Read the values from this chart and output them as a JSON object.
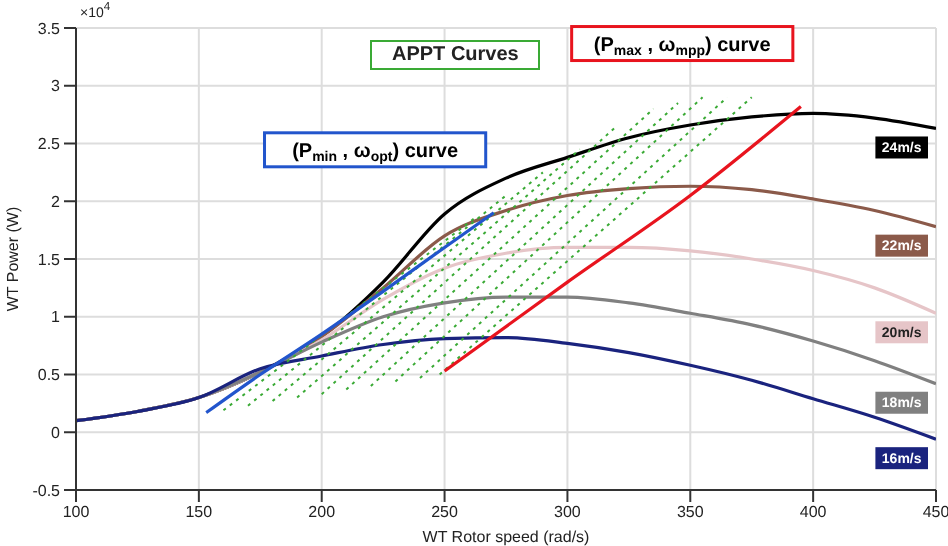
{
  "chart_data": {
    "type": "line",
    "xlabel": "WT Rotor speed (rad/s)",
    "ylabel": "WT Power (W)",
    "xlim": [
      100,
      450
    ],
    "xticks": [
      100,
      150,
      200,
      250,
      300,
      350,
      400,
      450
    ],
    "ylim": [
      -0.5,
      3.5
    ],
    "yticks": [
      -0.5,
      0,
      0.5,
      1,
      1.5,
      2,
      2.5,
      3,
      3.5
    ],
    "grid": true,
    "legend": false,
    "marker": "none",
    "annotations": [
      "×10$^{4}$",
      "APPT Curves"
    ],
    "series": [
      {
        "name": "24m/s",
        "color": "#000000",
        "x": [
          100,
          125,
          150,
          175,
          200,
          225,
          250,
          275,
          300,
          325,
          350,
          375,
          400,
          425,
          450
        ],
        "values": [
          0.1,
          0.18,
          0.3,
          0.52,
          0.83,
          1.3,
          1.89,
          2.2,
          2.38,
          2.55,
          2.66,
          2.73,
          2.76,
          2.72,
          2.63
        ]
      },
      {
        "name": "22m/s",
        "color": "#8b5a4a",
        "x": [
          100,
          125,
          150,
          175,
          200,
          225,
          250,
          275,
          300,
          325,
          350,
          375,
          400,
          425,
          450
        ],
        "values": [
          0.1,
          0.18,
          0.3,
          0.52,
          0.83,
          1.25,
          1.7,
          1.92,
          2.05,
          2.11,
          2.13,
          2.1,
          2.02,
          1.92,
          1.78
        ]
      },
      {
        "name": "20m/s",
        "color": "#e6c5c8",
        "x": [
          100,
          125,
          150,
          175,
          200,
          225,
          250,
          275,
          300,
          325,
          350,
          375,
          400,
          425,
          450
        ],
        "values": [
          0.1,
          0.18,
          0.3,
          0.52,
          0.8,
          1.15,
          1.42,
          1.55,
          1.6,
          1.6,
          1.57,
          1.5,
          1.4,
          1.25,
          1.03
        ]
      },
      {
        "name": "18m/s",
        "color": "#808080",
        "x": [
          100,
          125,
          150,
          175,
          200,
          225,
          250,
          275,
          300,
          325,
          350,
          375,
          400,
          425,
          450
        ],
        "values": [
          0.1,
          0.18,
          0.3,
          0.52,
          0.78,
          1.0,
          1.12,
          1.17,
          1.17,
          1.12,
          1.03,
          0.93,
          0.79,
          0.62,
          0.42
        ]
      },
      {
        "name": "16m/s",
        "color": "#1a237e",
        "x": [
          100,
          125,
          150,
          175,
          200,
          225,
          250,
          275,
          300,
          325,
          350,
          375,
          400,
          425,
          450
        ],
        "values": [
          0.1,
          0.18,
          0.3,
          0.55,
          0.66,
          0.76,
          0.81,
          0.82,
          0.77,
          0.69,
          0.58,
          0.45,
          0.29,
          0.13,
          -0.06
        ]
      },
      {
        "color": "#3aaa35",
        "line_style": "dotted",
        "x": [
          160,
          262
        ],
        "values": [
          0.19,
          1.85
        ]
      },
      {
        "color": "#3aaa35",
        "line_style": "dotted",
        "x": [
          170,
          275
        ],
        "values": [
          0.23,
          2.05
        ]
      },
      {
        "color": "#3aaa35",
        "line_style": "dotted",
        "x": [
          180,
          290
        ],
        "values": [
          0.27,
          2.25
        ]
      },
      {
        "color": "#3aaa35",
        "line_style": "dotted",
        "x": [
          190,
          305
        ],
        "values": [
          0.3,
          2.45
        ]
      },
      {
        "color": "#3aaa35",
        "line_style": "dotted",
        "x": [
          200,
          320
        ],
        "values": [
          0.33,
          2.65
        ]
      },
      {
        "color": "#3aaa35",
        "line_style": "dotted",
        "x": [
          210,
          335
        ],
        "values": [
          0.37,
          2.8
        ]
      },
      {
        "color": "#3aaa35",
        "line_style": "dotted",
        "x": [
          220,
          345
        ],
        "values": [
          0.4,
          2.85
        ]
      },
      {
        "color": "#3aaa35",
        "line_style": "dotted",
        "x": [
          230,
          355
        ],
        "values": [
          0.44,
          2.9
        ]
      },
      {
        "color": "#3aaa35",
        "line_style": "dotted",
        "x": [
          240,
          365
        ],
        "values": [
          0.47,
          2.9
        ]
      },
      {
        "color": "#3aaa35",
        "line_style": "dotted",
        "x": [
          248,
          375
        ],
        "values": [
          0.5,
          2.9
        ]
      },
      {
        "name": "(P$_{min}$ , ω$_{opt}$) curve",
        "color": "#2255cc",
        "x": [
          153,
          175,
          200,
          225,
          250,
          270
        ],
        "values": [
          0.17,
          0.5,
          0.85,
          1.22,
          1.6,
          1.9
        ]
      },
      {
        "name": "(P$_{max}$ , ω$_{mpp}$) curve",
        "color": "#e8141e",
        "x": [
          250,
          300,
          350,
          395
        ],
        "values": [
          0.53,
          1.3,
          2.05,
          2.82
        ]
      }
    ]
  }
}
